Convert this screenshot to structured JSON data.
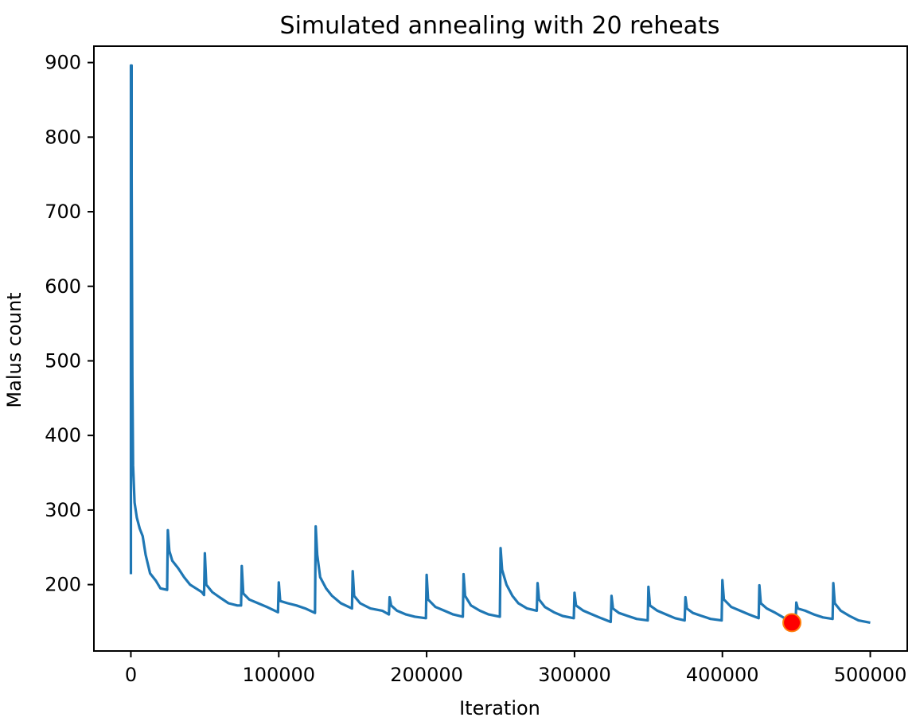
{
  "chart_data": {
    "type": "line",
    "title": "Simulated annealing with 20 reheats",
    "xlabel": "Iteration",
    "ylabel": "Malus count",
    "xlim": [
      -25000,
      525000
    ],
    "ylim": [
      111,
      922
    ],
    "xticks": [
      0,
      100000,
      200000,
      300000,
      400000,
      500000
    ],
    "xtick_labels": [
      "0",
      "100000",
      "200000",
      "300000",
      "400000",
      "500000"
    ],
    "yticks": [
      200,
      300,
      400,
      500,
      600,
      700,
      800,
      900
    ],
    "ytick_labels": [
      "200",
      "300",
      "400",
      "500",
      "600",
      "700",
      "800",
      "900"
    ],
    "grid": false,
    "legend": "none",
    "series": [
      {
        "color": "#1f77b4",
        "x": [
          0,
          0,
          500,
          500,
          1000,
          1500,
          2500,
          4000,
          6000,
          8000,
          10000,
          13000,
          17000,
          20000,
          24500,
          25000,
          26000,
          28000,
          32000,
          36000,
          40000,
          44000,
          48000,
          49500,
          50000,
          51000,
          55000,
          60000,
          66000,
          72000,
          74500,
          75000,
          76000,
          80000,
          86000,
          92000,
          99500,
          100000,
          101000,
          106000,
          112000,
          118000,
          124500,
          125000,
          126000,
          128000,
          132000,
          136000,
          142000,
          149500,
          150000,
          151000,
          155000,
          162000,
          170000,
          174500,
          175000,
          176000,
          180000,
          186000,
          192000,
          199500,
          200000,
          201000,
          206000,
          212000,
          218000,
          224500,
          225000,
          226000,
          230000,
          236000,
          242000,
          249500,
          250000,
          251000,
          254000,
          258000,
          262000,
          268000,
          274500,
          275000,
          276000,
          280000,
          286000,
          292000,
          299500,
          300000,
          301000,
          306000,
          312000,
          318000,
          324500,
          325000,
          326000,
          330000,
          336000,
          342000,
          349500,
          350000,
          351000,
          356000,
          362000,
          368000,
          374500,
          375000,
          376000,
          380000,
          386000,
          392000,
          399500,
          400000,
          401000,
          406000,
          412000,
          418000,
          424500,
          425000,
          426000,
          430000,
          436000,
          442000,
          447000,
          449500,
          450000,
          451000,
          456000,
          462000,
          468000,
          474500,
          475000,
          476000,
          480000,
          486000,
          492000,
          500000
        ],
        "y": [
          214,
          896,
          896,
          745,
          480,
          360,
          310,
          290,
          275,
          265,
          240,
          215,
          205,
          195,
          193,
          273,
          245,
          232,
          222,
          210,
          200,
          195,
          190,
          186,
          242,
          200,
          190,
          183,
          175,
          172,
          172,
          225,
          188,
          180,
          175,
          170,
          163,
          203,
          178,
          175,
          172,
          168,
          162,
          278,
          240,
          210,
          195,
          185,
          175,
          168,
          218,
          185,
          175,
          168,
          165,
          160,
          183,
          172,
          165,
          160,
          157,
          155,
          213,
          180,
          170,
          165,
          160,
          157,
          214,
          185,
          172,
          165,
          160,
          157,
          249,
          220,
          200,
          185,
          175,
          168,
          165,
          202,
          180,
          170,
          163,
          158,
          155,
          189,
          172,
          165,
          160,
          155,
          150,
          185,
          168,
          162,
          158,
          154,
          152,
          197,
          172,
          165,
          160,
          155,
          152,
          183,
          168,
          162,
          158,
          154,
          152,
          206,
          180,
          170,
          165,
          160,
          155,
          199,
          175,
          168,
          162,
          155,
          149,
          150,
          176,
          168,
          165,
          160,
          156,
          154,
          202,
          175,
          165,
          158,
          152,
          149
        ]
      }
    ],
    "highlight": {
      "x": 447000,
      "y": 149,
      "color": "#ff0000",
      "edge_color": "#ff7f0e"
    }
  }
}
